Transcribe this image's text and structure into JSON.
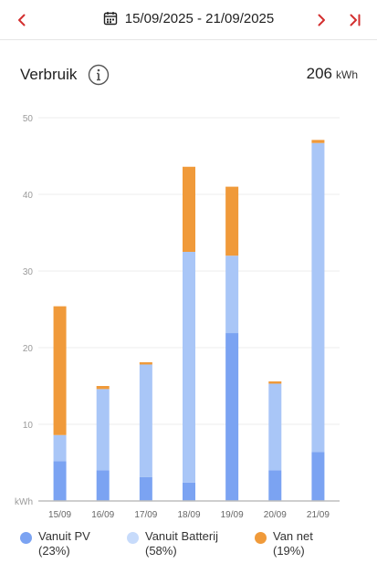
{
  "nav": {
    "date_range": "15/09/2025 - 21/09/2025",
    "accent": "#d32f2f"
  },
  "header": {
    "title": "Verbruik",
    "total_value": "206",
    "total_unit": "kWh"
  },
  "chart_data": {
    "type": "bar",
    "stacked": true,
    "categories": [
      "15/09",
      "16/09",
      "17/09",
      "18/09",
      "19/09",
      "20/09",
      "21/09"
    ],
    "series": [
      {
        "name": "Vanuit PV",
        "color": "#7ba3f2",
        "values": [
          5.2,
          4.0,
          3.1,
          2.4,
          21.9,
          4.0,
          6.4
        ]
      },
      {
        "name": "Vanuit Batterij",
        "color": "#a9c6f7",
        "values": [
          3.4,
          10.6,
          14.7,
          30.1,
          10.1,
          11.3,
          40.3
        ]
      },
      {
        "name": "Van net",
        "color": "#f09a3a",
        "values": [
          16.8,
          0.4,
          0.3,
          11.1,
          9.0,
          0.3,
          0.4
        ]
      }
    ],
    "ylim": [
      0,
      50
    ],
    "yticks": [
      10,
      20,
      30,
      40,
      50
    ],
    "ylabel": "kWh",
    "grid": true
  },
  "legend": [
    {
      "name": "Vanuit PV",
      "percent": "(23%)",
      "color": "#7ba3f2"
    },
    {
      "name": "Vanuit Batterij",
      "percent": "(58%)",
      "color": "#c7dbfb"
    },
    {
      "name": "Van net",
      "percent": "(19%)",
      "color": "#f09a3a"
    }
  ]
}
